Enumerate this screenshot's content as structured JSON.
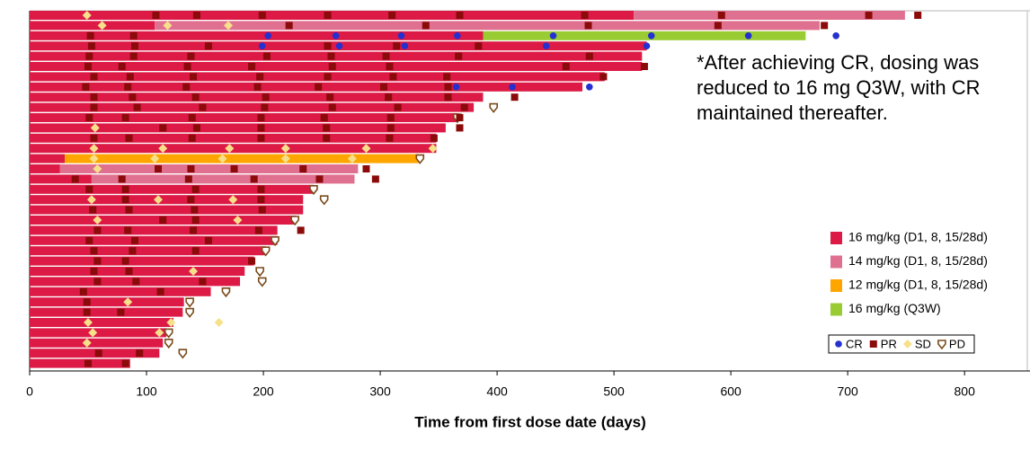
{
  "chart_data": {
    "type": "swimmer",
    "xlabel": "Time from first dose date (days)",
    "xlim": [
      0,
      856
    ],
    "xticks": [
      0,
      100,
      200,
      300,
      400,
      500,
      600,
      700,
      800
    ],
    "note": "*After achieving CR, dosing was reduced to 16 mg Q3W, with CR maintained thereafter.",
    "series": [
      {
        "name": "16 mg/kg (D1, 8, 15/28d)",
        "color": "#dc1a45"
      },
      {
        "name": "14 mg/kg (D1, 8, 15/28d)",
        "color": "#e07090"
      },
      {
        "name": "12 mg/kg (D1, 8, 15/28d)",
        "color": "#ffa500"
      },
      {
        "name": "16 mg/kg (Q3W)",
        "color": "#99cc33"
      }
    ],
    "markers": [
      {
        "name": "CR",
        "color": "#2430d0",
        "shape": "circle"
      },
      {
        "name": "PR",
        "color": "#8b0a0a",
        "shape": "square"
      },
      {
        "name": "SD",
        "color": "#f7e08a",
        "shape": "diamond"
      },
      {
        "name": "PD",
        "color": "#7a4a1a",
        "shape": "shield"
      }
    ],
    "rows": [
      {
        "segments": [
          [
            0,
            0,
            517
          ],
          [
            1,
            517,
            749
          ]
        ],
        "events": [
          [
            2,
            49
          ],
          [
            1,
            108
          ],
          [
            1,
            143
          ],
          [
            1,
            199
          ],
          [
            1,
            255
          ],
          [
            1,
            310
          ],
          [
            1,
            368
          ],
          [
            1,
            475
          ],
          [
            1,
            592
          ],
          [
            1,
            718
          ],
          [
            1,
            760
          ]
        ]
      },
      {
        "segments": [
          [
            0,
            0,
            107
          ],
          [
            1,
            107,
            676
          ]
        ],
        "events": [
          [
            2,
            62
          ],
          [
            2,
            118
          ],
          [
            2,
            170
          ],
          [
            1,
            222
          ],
          [
            1,
            339
          ],
          [
            1,
            478
          ],
          [
            1,
            589
          ],
          [
            1,
            680
          ]
        ]
      },
      {
        "segments": [
          [
            0,
            0,
            388
          ],
          [
            3,
            388,
            664
          ]
        ],
        "events": [
          [
            1,
            52
          ],
          [
            1,
            89
          ],
          [
            0,
            204
          ],
          [
            0,
            262
          ],
          [
            0,
            318
          ],
          [
            0,
            366
          ],
          [
            0,
            448
          ],
          [
            0,
            532
          ],
          [
            0,
            615
          ],
          [
            0,
            690
          ]
        ]
      },
      {
        "segments": [
          [
            0,
            0,
            528
          ]
        ],
        "events": [
          [
            1,
            53
          ],
          [
            1,
            90
          ],
          [
            1,
            153
          ],
          [
            1,
            255
          ],
          [
            1,
            314
          ],
          [
            1,
            384
          ],
          [
            0,
            199
          ],
          [
            0,
            265
          ],
          [
            0,
            321
          ],
          [
            0,
            442
          ],
          [
            0,
            528
          ]
        ]
      },
      {
        "segments": [
          [
            0,
            0,
            524
          ]
        ],
        "events": [
          [
            1,
            51
          ],
          [
            1,
            89
          ],
          [
            1,
            138
          ],
          [
            1,
            203
          ],
          [
            1,
            258
          ],
          [
            1,
            305
          ],
          [
            1,
            367
          ],
          [
            1,
            479
          ]
        ]
      },
      {
        "segments": [
          [
            0,
            0,
            524
          ]
        ],
        "events": [
          [
            1,
            50
          ],
          [
            1,
            79
          ],
          [
            1,
            135
          ],
          [
            1,
            190
          ],
          [
            1,
            259
          ],
          [
            1,
            308
          ],
          [
            1,
            459
          ],
          [
            1,
            526
          ]
        ]
      },
      {
        "segments": [
          [
            0,
            0,
            492
          ]
        ],
        "events": [
          [
            1,
            55
          ],
          [
            1,
            86
          ],
          [
            1,
            140
          ],
          [
            1,
            197
          ],
          [
            1,
            255
          ],
          [
            1,
            311
          ],
          [
            1,
            357
          ],
          [
            1,
            491
          ]
        ]
      },
      {
        "segments": [
          [
            0,
            0,
            473
          ]
        ],
        "events": [
          [
            1,
            48
          ],
          [
            1,
            84
          ],
          [
            1,
            134
          ],
          [
            1,
            195
          ],
          [
            1,
            247
          ],
          [
            1,
            303
          ],
          [
            1,
            358
          ],
          [
            0,
            365
          ],
          [
            0,
            413
          ],
          [
            0,
            479
          ]
        ]
      },
      {
        "segments": [
          [
            0,
            0,
            388
          ]
        ],
        "events": [
          [
            1,
            55
          ],
          [
            1,
            88
          ],
          [
            1,
            142
          ],
          [
            1,
            202
          ],
          [
            1,
            257
          ],
          [
            1,
            307
          ],
          [
            1,
            358
          ],
          [
            1,
            415
          ]
        ]
      },
      {
        "segments": [
          [
            0,
            0,
            380
          ]
        ],
        "events": [
          [
            1,
            55
          ],
          [
            1,
            92
          ],
          [
            1,
            148
          ],
          [
            1,
            201
          ],
          [
            1,
            259
          ],
          [
            1,
            315
          ],
          [
            1,
            372
          ],
          [
            3,
            397
          ]
        ]
      },
      {
        "segments": [
          [
            0,
            0,
            367
          ]
        ],
        "events": [
          [
            1,
            51
          ],
          [
            1,
            82
          ],
          [
            1,
            139
          ],
          [
            1,
            198
          ],
          [
            1,
            252
          ],
          [
            1,
            309
          ],
          [
            3,
            366
          ],
          [
            1,
            368
          ]
        ]
      },
      {
        "segments": [
          [
            0,
            0,
            356
          ]
        ],
        "events": [
          [
            2,
            56
          ],
          [
            1,
            114
          ],
          [
            1,
            143
          ],
          [
            1,
            198
          ],
          [
            1,
            254
          ],
          [
            1,
            309
          ],
          [
            1,
            368
          ]
        ]
      },
      {
        "segments": [
          [
            0,
            0,
            348
          ]
        ],
        "events": [
          [
            1,
            55
          ],
          [
            1,
            85
          ],
          [
            1,
            139
          ],
          [
            1,
            198
          ],
          [
            1,
            254
          ],
          [
            1,
            308
          ],
          [
            1,
            346
          ]
        ]
      },
      {
        "segments": [
          [
            0,
            0,
            348
          ]
        ],
        "events": [
          [
            2,
            55
          ],
          [
            2,
            114
          ],
          [
            2,
            171
          ],
          [
            2,
            219
          ],
          [
            2,
            288
          ],
          [
            2,
            345
          ]
        ]
      },
      {
        "segments": [
          [
            0,
            0,
            30
          ],
          [
            2,
            30,
            333
          ]
        ],
        "events": [
          [
            2,
            55
          ],
          [
            2,
            107
          ],
          [
            2,
            165
          ],
          [
            2,
            219
          ],
          [
            2,
            276
          ],
          [
            3,
            334
          ]
        ]
      },
      {
        "segments": [
          [
            0,
            0,
            26
          ],
          [
            1,
            26,
            281
          ]
        ],
        "events": [
          [
            2,
            58
          ],
          [
            1,
            110
          ],
          [
            1,
            138
          ],
          [
            1,
            175
          ],
          [
            1,
            234
          ],
          [
            1,
            288
          ]
        ]
      },
      {
        "segments": [
          [
            0,
            0,
            53
          ],
          [
            1,
            53,
            278
          ]
        ],
        "events": [
          [
            1,
            39
          ],
          [
            1,
            79
          ],
          [
            1,
            136
          ],
          [
            1,
            192
          ],
          [
            1,
            248
          ],
          [
            1,
            296
          ]
        ]
      },
      {
        "segments": [
          [
            0,
            0,
            243
          ]
        ],
        "events": [
          [
            1,
            51
          ],
          [
            1,
            82
          ],
          [
            1,
            142
          ],
          [
            1,
            198
          ],
          [
            3,
            243
          ]
        ]
      },
      {
        "segments": [
          [
            0,
            0,
            234
          ]
        ],
        "events": [
          [
            2,
            53
          ],
          [
            2,
            110
          ],
          [
            2,
            174
          ],
          [
            1,
            82
          ],
          [
            1,
            138
          ],
          [
            1,
            198
          ],
          [
            3,
            252
          ]
        ]
      },
      {
        "segments": [
          [
            0,
            0,
            234
          ]
        ],
        "events": [
          [
            1,
            54
          ],
          [
            1,
            85
          ],
          [
            1,
            141
          ],
          [
            1,
            199
          ]
        ]
      },
      {
        "segments": [
          [
            0,
            0,
            228
          ]
        ],
        "events": [
          [
            2,
            58
          ],
          [
            2,
            178
          ],
          [
            1,
            114
          ],
          [
            1,
            142
          ],
          [
            3,
            227
          ]
        ]
      },
      {
        "segments": [
          [
            0,
            0,
            212
          ]
        ],
        "events": [
          [
            1,
            58
          ],
          [
            1,
            84
          ],
          [
            1,
            140
          ],
          [
            1,
            196
          ],
          [
            1,
            232
          ]
        ]
      },
      {
        "segments": [
          [
            0,
            0,
            212
          ]
        ],
        "events": [
          [
            1,
            51
          ],
          [
            1,
            90
          ],
          [
            1,
            153
          ],
          [
            3,
            210
          ]
        ]
      },
      {
        "segments": [
          [
            0,
            0,
            202
          ]
        ],
        "events": [
          [
            1,
            55
          ],
          [
            1,
            88
          ],
          [
            1,
            142
          ],
          [
            3,
            202
          ]
        ]
      },
      {
        "segments": [
          [
            0,
            0,
            192
          ]
        ],
        "events": [
          [
            1,
            58
          ],
          [
            1,
            82
          ],
          [
            1,
            190
          ]
        ]
      },
      {
        "segments": [
          [
            0,
            0,
            184
          ]
        ],
        "events": [
          [
            1,
            55
          ],
          [
            1,
            85
          ],
          [
            2,
            140
          ],
          [
            3,
            197
          ]
        ]
      },
      {
        "segments": [
          [
            0,
            0,
            180
          ]
        ],
        "events": [
          [
            1,
            58
          ],
          [
            1,
            91
          ],
          [
            1,
            148
          ],
          [
            3,
            199
          ]
        ]
      },
      {
        "segments": [
          [
            0,
            0,
            155
          ]
        ],
        "events": [
          [
            1,
            46
          ],
          [
            1,
            112
          ],
          [
            3,
            168
          ]
        ]
      },
      {
        "segments": [
          [
            0,
            0,
            132
          ]
        ],
        "events": [
          [
            1,
            49
          ],
          [
            2,
            84
          ],
          [
            3,
            137
          ]
        ]
      },
      {
        "segments": [
          [
            0,
            0,
            131
          ]
        ],
        "events": [
          [
            1,
            49
          ],
          [
            1,
            78
          ],
          [
            3,
            137
          ]
        ]
      },
      {
        "segments": [
          [
            0,
            0,
            123
          ]
        ],
        "events": [
          [
            2,
            50
          ],
          [
            2,
            121
          ],
          [
            2,
            162
          ]
        ]
      },
      {
        "segments": [
          [
            0,
            0,
            117
          ]
        ],
        "events": [
          [
            2,
            54
          ],
          [
            2,
            111
          ],
          [
            3,
            119
          ]
        ]
      },
      {
        "segments": [
          [
            0,
            0,
            114
          ]
        ],
        "events": [
          [
            2,
            49
          ],
          [
            3,
            119
          ]
        ]
      },
      {
        "segments": [
          [
            0,
            0,
            111
          ]
        ],
        "events": [
          [
            1,
            59
          ],
          [
            1,
            94
          ],
          [
            3,
            131
          ]
        ]
      },
      {
        "segments": [
          [
            0,
            0,
            86
          ]
        ],
        "events": [
          [
            1,
            50
          ],
          [
            1,
            82
          ]
        ]
      }
    ]
  }
}
